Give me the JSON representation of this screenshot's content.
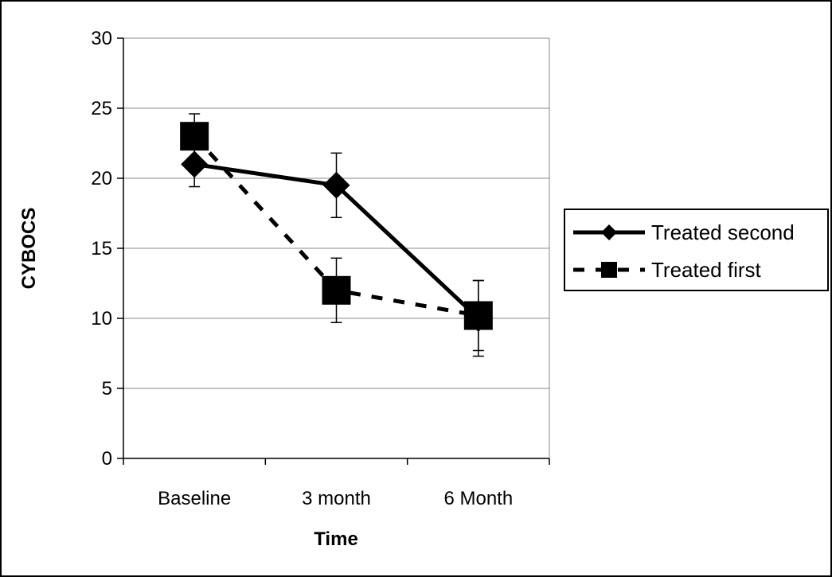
{
  "chart_data": {
    "type": "line",
    "xlabel": "Time",
    "ylabel": "CYBOCS",
    "categories": [
      "Baseline",
      "3 month",
      "6 Month"
    ],
    "ylim": [
      0,
      30
    ],
    "yticks": [
      0,
      5,
      10,
      15,
      20,
      25,
      30
    ],
    "grid": true,
    "legend_position": "right",
    "series": [
      {
        "name": "Treated second",
        "values": [
          21,
          19.5,
          10
        ],
        "error": [
          1.6,
          2.3,
          2.7
        ],
        "marker": "diamond",
        "line_style": "solid",
        "color": "#000000"
      },
      {
        "name": "Treated first",
        "values": [
          23,
          12,
          10.2
        ],
        "error": [
          1.6,
          2.3,
          2.5
        ],
        "marker": "square",
        "line_style": "dashed",
        "color": "#000000"
      }
    ]
  }
}
